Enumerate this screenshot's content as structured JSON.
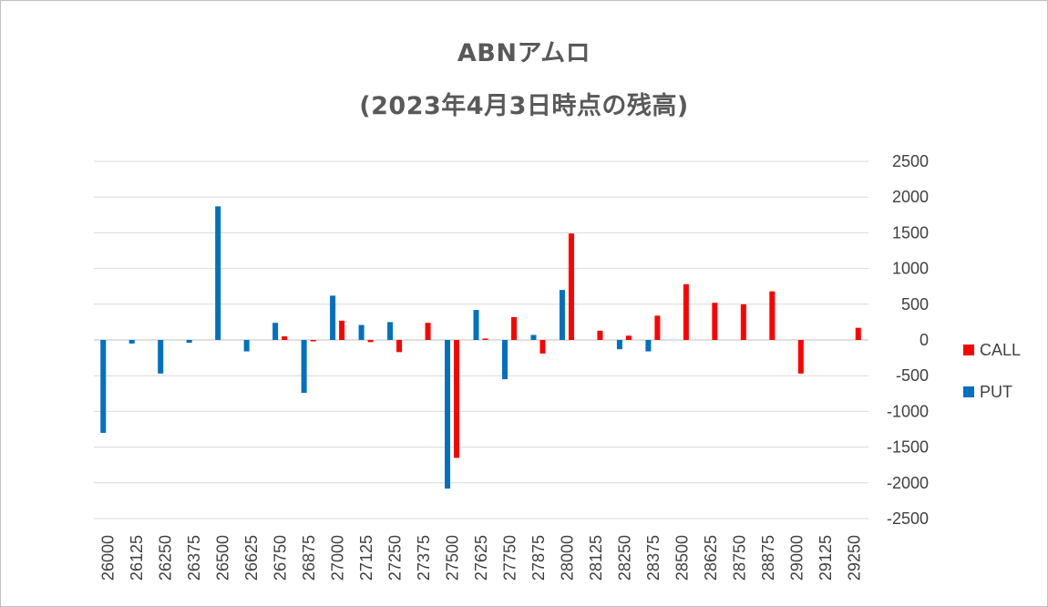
{
  "chart_data": {
    "type": "bar",
    "title": "ABNアムロ",
    "subtitle": "(2023年4月3日時点の残高)",
    "categories": [
      "26000",
      "26125",
      "26250",
      "26375",
      "26500",
      "26625",
      "26750",
      "26875",
      "27000",
      "27125",
      "27250",
      "27375",
      "27500",
      "27625",
      "27750",
      "27875",
      "28000",
      "28125",
      "28250",
      "28375",
      "28500",
      "28625",
      "28750",
      "28875",
      "29000",
      "29125",
      "29250"
    ],
    "series": [
      {
        "name": "PUT",
        "color": "#0070C0",
        "values": [
          -1300,
          -50,
          -470,
          -40,
          1870,
          -160,
          240,
          -740,
          620,
          210,
          250,
          0,
          -2080,
          420,
          -550,
          70,
          700,
          0,
          -130,
          -160,
          0,
          0,
          0,
          0,
          0,
          0,
          0
        ]
      },
      {
        "name": "CALL",
        "color": "#FF0000",
        "values": [
          0,
          0,
          0,
          0,
          0,
          0,
          50,
          -20,
          270,
          -30,
          -170,
          240,
          -1650,
          20,
          320,
          -190,
          1490,
          130,
          60,
          340,
          780,
          520,
          500,
          680,
          -470,
          0,
          170
        ]
      }
    ],
    "ylim": [
      -2500,
      2500
    ],
    "yticks": [
      2500,
      2000,
      1500,
      1000,
      500,
      0,
      -500,
      -1000,
      -1500,
      -2000,
      -2500
    ],
    "y_axis_side": "right",
    "grid": true,
    "legend_position": "right",
    "legend_order": [
      "CALL",
      "PUT"
    ]
  }
}
